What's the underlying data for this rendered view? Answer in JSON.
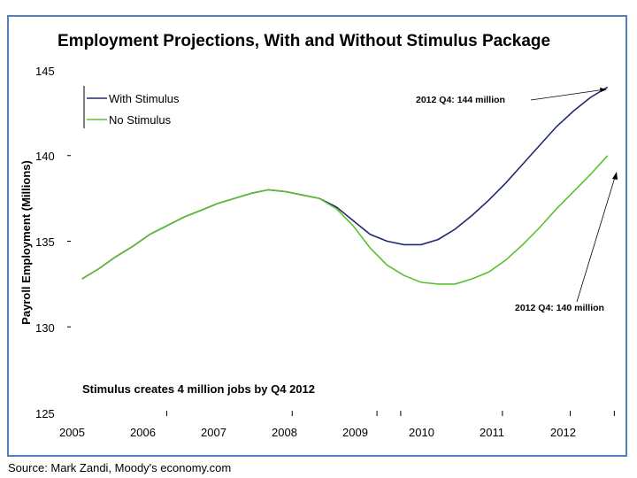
{
  "chart_data": {
    "type": "line",
    "title": "Employment Projections, With and Without Stimulus Package",
    "ylabel": "Payroll Employment (Millions)",
    "xlabel": "",
    "ylim": [
      125,
      145
    ],
    "yticks": [
      "125",
      "130",
      "135",
      "140",
      "145"
    ],
    "xticks": [
      "2005",
      "2006",
      "2007",
      "2008",
      "2009",
      "2010",
      "2011",
      "2012"
    ],
    "grid": false,
    "legend": "top-left",
    "series": [
      {
        "name": "With Stimulus",
        "color": "#1f2a6b",
        "x": [
          2005.0,
          2005.25,
          2005.5,
          2005.75,
          2006.0,
          2006.25,
          2006.5,
          2006.75,
          2007.0,
          2007.25,
          2007.5,
          2007.75,
          2008.0,
          2008.25,
          2008.5,
          2008.75,
          2009.0,
          2009.25,
          2009.5,
          2009.75,
          2010.0,
          2010.25,
          2010.5,
          2010.75,
          2011.0,
          2011.25,
          2011.5,
          2011.75,
          2012.0,
          2012.25,
          2012.5,
          2012.75
        ],
        "y": [
          132.8,
          133.4,
          134.1,
          134.7,
          135.4,
          135.9,
          136.4,
          136.8,
          137.2,
          137.5,
          137.8,
          138.0,
          137.9,
          137.7,
          137.5,
          137.0,
          136.2,
          135.4,
          135.0,
          134.8,
          134.8,
          135.1,
          135.7,
          136.5,
          137.4,
          138.4,
          139.5,
          140.6,
          141.7,
          142.6,
          143.4,
          144.0
        ]
      },
      {
        "name": "No Stimulus",
        "color": "#5cc02e",
        "x": [
          2005.0,
          2005.25,
          2005.5,
          2005.75,
          2006.0,
          2006.25,
          2006.5,
          2006.75,
          2007.0,
          2007.25,
          2007.5,
          2007.75,
          2008.0,
          2008.25,
          2008.5,
          2008.75,
          2009.0,
          2009.25,
          2009.5,
          2009.75,
          2010.0,
          2010.25,
          2010.5,
          2010.75,
          2011.0,
          2011.25,
          2011.5,
          2011.75,
          2012.0,
          2012.25,
          2012.5,
          2012.75
        ],
        "y": [
          132.8,
          133.4,
          134.1,
          134.7,
          135.4,
          135.9,
          136.4,
          136.8,
          137.2,
          137.5,
          137.8,
          138.0,
          137.9,
          137.7,
          137.5,
          136.9,
          135.9,
          134.6,
          133.6,
          133.0,
          132.6,
          132.5,
          132.5,
          132.8,
          133.2,
          133.9,
          134.8,
          135.8,
          136.9,
          137.9,
          138.9,
          140.0
        ]
      }
    ],
    "annotations": [
      {
        "text": "2012 Q4: 144 million"
      },
      {
        "text": "2012 Q4: 140 million"
      },
      {
        "text": "Stimulus creates 4 million jobs by Q4 2012"
      }
    ]
  },
  "source": "Source: Mark Zandi, Moody's economy.com"
}
